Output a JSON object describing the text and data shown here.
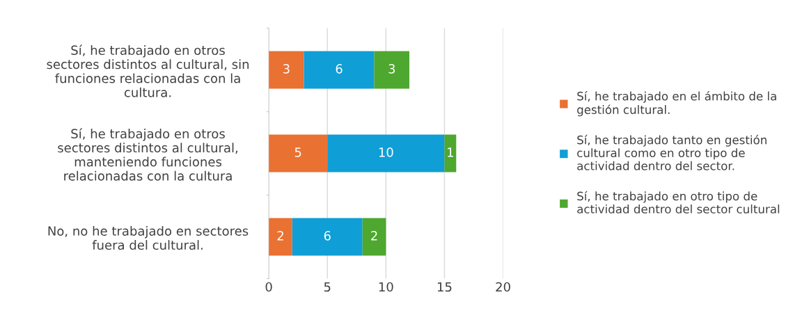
{
  "chart_data": {
    "type": "bar",
    "orientation": "horizontal",
    "stacked": true,
    "categories": [
      "Sí, he trabajado en otros\nsectores distintos al cultural, sin\nfunciones relacionadas con la\ncultura.",
      "Sí, he trabajado en otros\nsectores distintos al cultural,\nmanteniendo funciones\nrelacionadas con la cultura",
      "No, no he trabajado en sectores\nfuera del cultural."
    ],
    "series": [
      {
        "name": "Sí, he trabajado en el ámbito de la\ngestión cultural.",
        "color": "#e97132",
        "values": [
          3,
          5,
          2
        ]
      },
      {
        "name": "Sí, he trabajado tanto en gestión\ncultural como en otro tipo de\nactividad dentro del sector.",
        "color": "#0f9ed5",
        "values": [
          6,
          10,
          6
        ]
      },
      {
        "name": "Sí, he trabajado en otro tipo de\nactividad dentro del sector cultural",
        "color": "#4ea72e",
        "values": [
          3,
          1,
          2
        ]
      }
    ],
    "xlim": [
      0,
      20
    ],
    "xticks": [
      0,
      5,
      10,
      15,
      20
    ],
    "grid": "x",
    "data_labels": true,
    "legend": "right"
  }
}
